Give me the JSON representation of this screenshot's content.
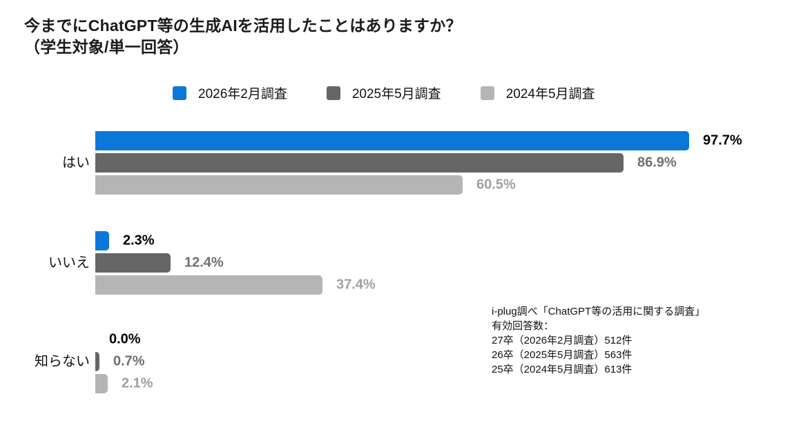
{
  "title": {
    "line1": "今までにChatGPT等の生成AIを活用したことはありますか？",
    "line2": "（学生対象/単一回答）"
  },
  "legend": [
    {
      "label": "2026年2月調査",
      "color": "#0b78d9"
    },
    {
      "label": "2025年5月調査",
      "color": "#666666"
    },
    {
      "label": "2024年5月調査",
      "color": "#b5b5b5"
    }
  ],
  "chart_data": {
    "type": "bar",
    "orientation": "horizontal",
    "title": "今までにChatGPT等の生成AIを活用したことはありますか？（学生対象/単一回答）",
    "categories": [
      "はい",
      "いいえ",
      "知らない"
    ],
    "series": [
      {
        "name": "2026年2月調査",
        "color": "#0b78d9",
        "label_color": "#000000",
        "values": [
          97.7,
          2.3,
          0.0
        ]
      },
      {
        "name": "2025年5月調査",
        "color": "#666666",
        "label_color": "#6f6f6f",
        "values": [
          86.9,
          12.4,
          0.7
        ]
      },
      {
        "name": "2024年5月調査",
        "color": "#b5b5b5",
        "label_color": "#a0a0a0",
        "values": [
          60.5,
          37.4,
          2.1
        ]
      }
    ],
    "value_suffix": "%",
    "xlim": [
      0,
      100
    ],
    "grid": false,
    "legend_position": "top"
  },
  "note": {
    "lines": [
      "i-plug調べ「ChatGPT等の活用に関する調査」",
      "有効回答数：",
      "27卒（2026年2月調査）512件",
      "26卒（2025年5月調査）563件",
      "25卒（2024年5月調査）613件"
    ]
  }
}
